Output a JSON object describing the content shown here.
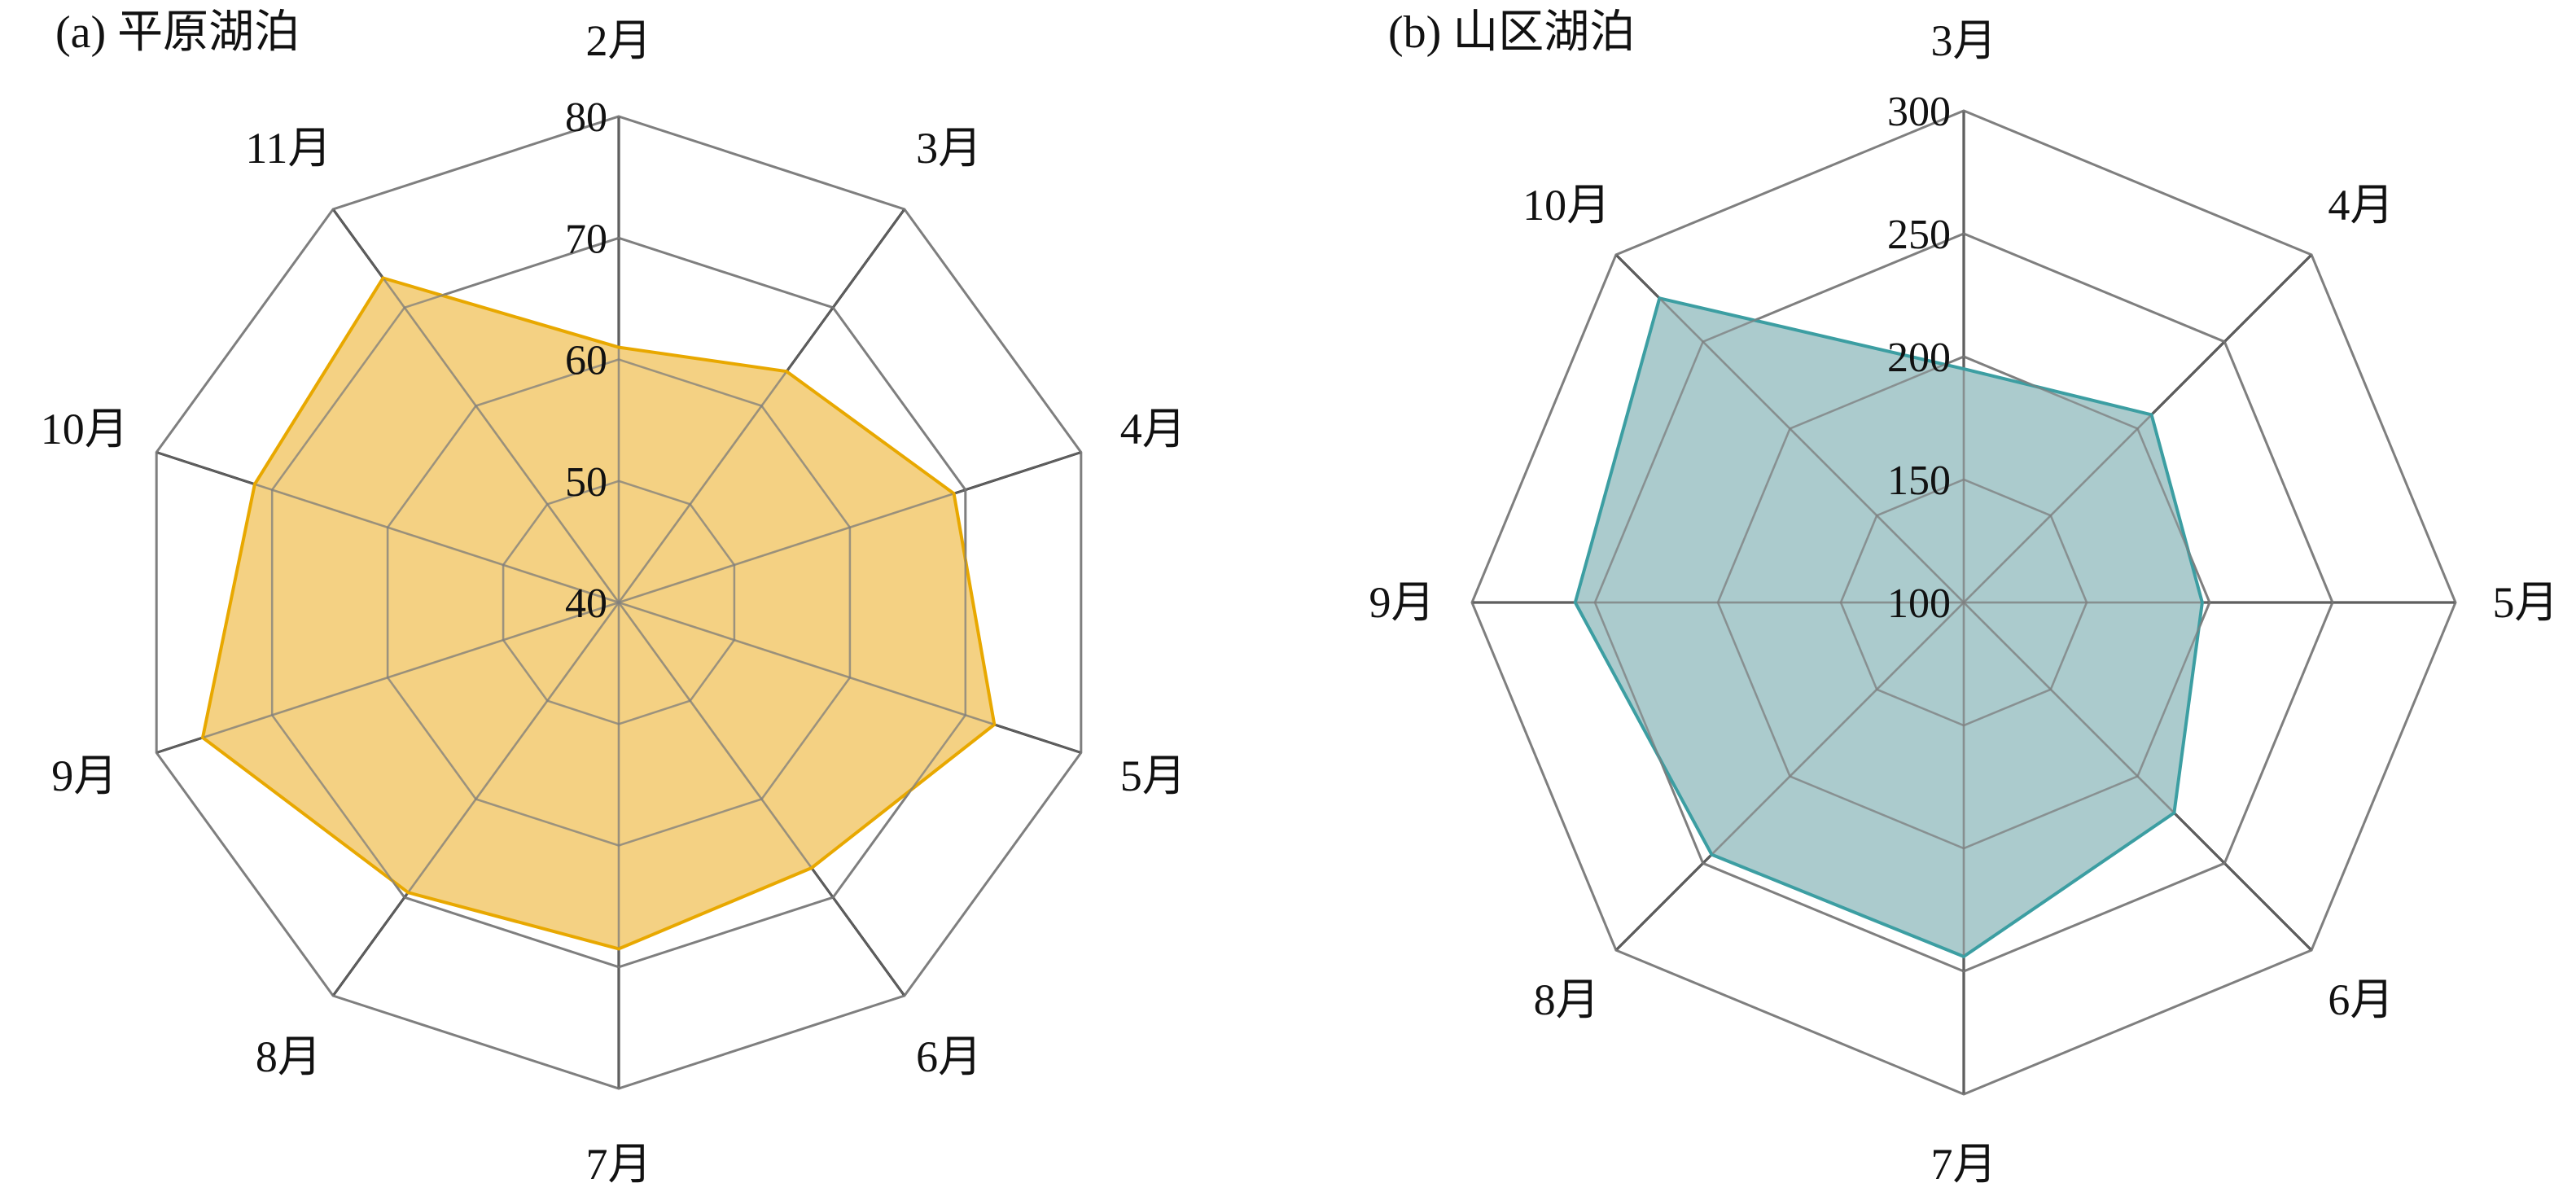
{
  "chart_data": [
    {
      "type": "radar",
      "title": "(a) 平原湖泊",
      "categories": [
        "2月",
        "3月",
        "4月",
        "5月",
        "6月",
        "7月",
        "8月",
        "9月",
        "10月",
        "11月"
      ],
      "series": [
        {
          "values": [
            61,
            63.5,
            69,
            72.5,
            67,
            68.5,
            69.5,
            76,
            71.5,
            73
          ]
        }
      ],
      "radial_ticks": [
        "40",
        "50",
        "60",
        "70",
        "80"
      ],
      "rlim": [
        40,
        80
      ],
      "fill_color": "#F3CF7C",
      "line_color": "#E8A800",
      "grid_color": "#7F7F7F",
      "spoke_color": "#000000"
    },
    {
      "type": "radar",
      "title": "(b) 山区湖泊",
      "categories": [
        "3月",
        "4月",
        "5月",
        "6月",
        "7月",
        "8月",
        "9月",
        "10月"
      ],
      "series": [
        {
          "values": [
            195,
            208,
            197,
            221,
            244,
            245,
            258,
            275
          ]
        }
      ],
      "radial_ticks": [
        "100",
        "150",
        "200",
        "250",
        "300"
      ],
      "rlim": [
        100,
        300
      ],
      "fill_color": "#A7C8CA",
      "line_color": "#3C9EA2",
      "grid_color": "#7F7F7F",
      "spoke_color": "#000000"
    }
  ]
}
